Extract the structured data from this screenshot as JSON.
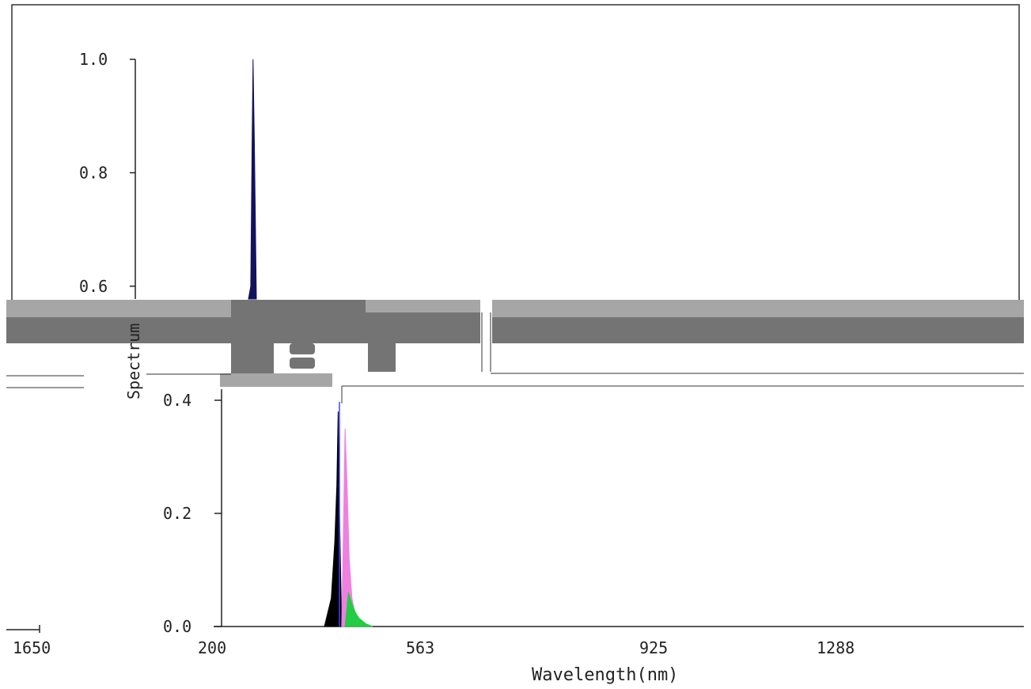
{
  "chart_data": {
    "type": "area",
    "title": "",
    "xlabel": "Wavelength(nm)",
    "ylabel": "Spectrum",
    "upper_panel": {
      "y_ticks": [
        "1.0",
        "0.8",
        "0.6"
      ],
      "series": [
        {
          "name": "",
          "color": "#12125e",
          "x": [
            298,
            305,
            309,
            312,
            316,
            322
          ],
          "y": [
            0.0,
            0.6,
            0.85,
            1.0,
            0.85,
            0.0
          ]
        }
      ]
    },
    "lower_panel": {
      "x_ticks": [
        "200",
        "563",
        "925",
        "1288"
      ],
      "y_ticks": [
        "0.4",
        "0.2",
        "0.0"
      ],
      "xlim": [
        200,
        1650
      ],
      "ylim": [
        0,
        0.45
      ],
      "series": [
        {
          "name": "",
          "color": "#000000",
          "x": [
            400,
            410,
            415,
            418,
            420,
            422,
            425
          ],
          "y": [
            0.0,
            0.05,
            0.15,
            0.25,
            0.38,
            0.2,
            0.0
          ]
        },
        {
          "name": "",
          "color": "#f080e0",
          "x": [
            425,
            428,
            430,
            433,
            436,
            440,
            445,
            455
          ],
          "y": [
            0.0,
            0.2,
            0.35,
            0.25,
            0.12,
            0.05,
            0.02,
            0.0
          ]
        },
        {
          "name": "",
          "color": "#22cc44",
          "x": [
            430,
            435,
            440,
            445,
            450,
            460,
            470
          ],
          "y": [
            0.0,
            0.06,
            0.04,
            0.025,
            0.015,
            0.005,
            0.0
          ]
        }
      ]
    },
    "stray_tick_label": "1650"
  }
}
